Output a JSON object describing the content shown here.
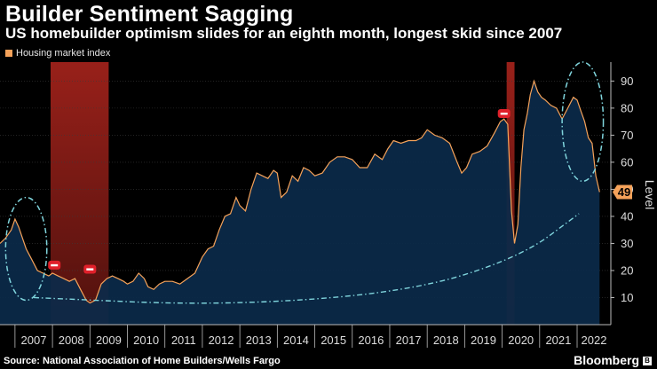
{
  "title": "Builder Sentiment Sagging",
  "subtitle": "US homebuilder optimism slides for an eighth month, longest skid since 2007",
  "legend": {
    "label": "Housing market index",
    "color": "#f5a25a"
  },
  "source": "Source: National Association of Home Builders/Wells Fargo",
  "brand": "Bloomberg",
  "brand_icon": "bloomberg-logo-icon",
  "colors": {
    "line": "#f5a25a",
    "area": "#0b2a4a",
    "recession": "#b3261e",
    "annotation": "#7fd4dc",
    "marker": "#e0202a"
  },
  "chart_data": {
    "type": "area",
    "title": "Builder Sentiment Sagging",
    "ylabel": "Level",
    "xlabel": "",
    "ylim": [
      0,
      97
    ],
    "yticks": [
      10,
      20,
      30,
      40,
      50,
      60,
      70,
      80,
      90
    ],
    "xlim": [
      2006.6,
      2022.9
    ],
    "xticks": [
      "2007",
      "2008",
      "2009",
      "2010",
      "2011",
      "2012",
      "2013",
      "2014",
      "2015",
      "2016",
      "2017",
      "2018",
      "2019",
      "2020",
      "2021",
      "2022"
    ],
    "last_value_label": "49",
    "recessions": [
      [
        2007.95,
        2009.5
      ],
      [
        2020.12,
        2020.33
      ]
    ],
    "series": [
      {
        "name": "Housing market index",
        "x": [
          2006.6,
          2006.75,
          2006.9,
          2007.0,
          2007.1,
          2007.2,
          2007.3,
          2007.45,
          2007.6,
          2007.75,
          2007.9,
          2008.0,
          2008.15,
          2008.3,
          2008.45,
          2008.6,
          2008.75,
          2008.9,
          2009.0,
          2009.15,
          2009.3,
          2009.45,
          2009.6,
          2009.75,
          2009.9,
          2010.0,
          2010.15,
          2010.3,
          2010.45,
          2010.55,
          2010.7,
          2010.85,
          2011.0,
          2011.2,
          2011.4,
          2011.6,
          2011.8,
          2012.0,
          2012.15,
          2012.3,
          2012.45,
          2012.6,
          2012.75,
          2012.9,
          2013.0,
          2013.15,
          2013.3,
          2013.45,
          2013.6,
          2013.75,
          2013.9,
          2014.0,
          2014.1,
          2014.25,
          2014.4,
          2014.55,
          2014.7,
          2014.85,
          2015.0,
          2015.2,
          2015.4,
          2015.6,
          2015.8,
          2016.0,
          2016.2,
          2016.4,
          2016.6,
          2016.8,
          2016.95,
          2017.1,
          2017.3,
          2017.5,
          2017.7,
          2017.85,
          2018.0,
          2018.2,
          2018.4,
          2018.6,
          2018.8,
          2018.92,
          2019.05,
          2019.2,
          2019.4,
          2019.6,
          2019.8,
          2019.95,
          2020.05,
          2020.15,
          2020.25,
          2020.33,
          2020.42,
          2020.5,
          2020.58,
          2020.67,
          2020.75,
          2020.85,
          2020.95,
          2021.05,
          2021.15,
          2021.3,
          2021.45,
          2021.6,
          2021.75,
          2021.9,
          2022.0,
          2022.1,
          2022.2,
          2022.3,
          2022.4,
          2022.5,
          2022.6
        ],
        "values": [
          30,
          32,
          35,
          39,
          36,
          32,
          28,
          24,
          20,
          19,
          18,
          19,
          18,
          17,
          16,
          17,
          13,
          9,
          8,
          9,
          15,
          17,
          18,
          17,
          16,
          15,
          16,
          19,
          17,
          14,
          13,
          15,
          16,
          16,
          15,
          17,
          19,
          25,
          28,
          29,
          35,
          40,
          41,
          47,
          44,
          42,
          50,
          56,
          55,
          54,
          57,
          56,
          47,
          49,
          55,
          53,
          58,
          57,
          55,
          56,
          60,
          62,
          62,
          61,
          58,
          58,
          63,
          61,
          65,
          68,
          67,
          68,
          68,
          69,
          72,
          70,
          69,
          67,
          60,
          56,
          58,
          63,
          64,
          66,
          71,
          75,
          76,
          74,
          42,
          30,
          37,
          58,
          72,
          78,
          85,
          90,
          86,
          84,
          83,
          81,
          80,
          76,
          80,
          84,
          83,
          79,
          75,
          69,
          67,
          55,
          49
        ]
      }
    ],
    "annotations": [
      {
        "type": "ellipse",
        "center": [
          2007.3,
          28
        ],
        "radius": [
          0.55,
          19
        ]
      },
      {
        "type": "ellipse",
        "center": [
          2022.15,
          75
        ],
        "radius": [
          0.55,
          22
        ]
      },
      {
        "type": "curve",
        "points": [
          [
            2007.5,
            10
          ],
          [
            2012.5,
            7
          ],
          [
            2017.5,
            12
          ],
          [
            2020.5,
            25
          ],
          [
            2022.05,
            41
          ]
        ]
      }
    ],
    "markers": [
      {
        "x": 2008.05,
        "y": 22
      },
      {
        "x": 2009.0,
        "y": 20.5
      },
      {
        "x": 2020.05,
        "y": 78
      }
    ]
  }
}
